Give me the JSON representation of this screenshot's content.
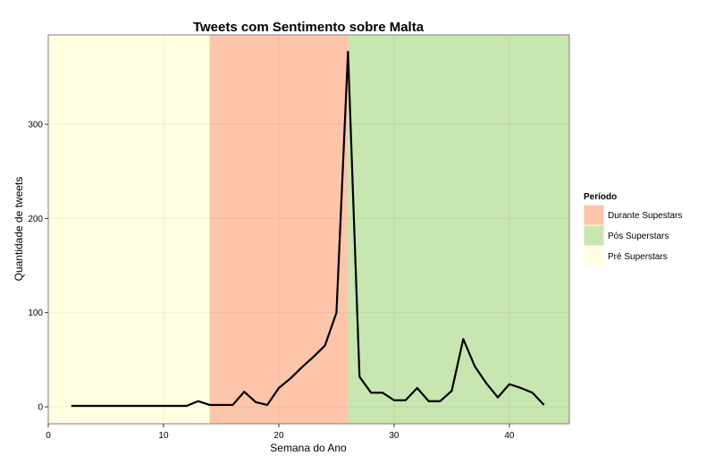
{
  "chart_data": {
    "type": "line",
    "title": "Tweets com Sentimento sobre Malta",
    "xlabel": "Semana do Ano",
    "ylabel": "Quantidade de tweets",
    "xlim": [
      0,
      45.2
    ],
    "ylim": [
      -18,
      395
    ],
    "x_ticks": [
      0,
      10,
      20,
      30,
      40
    ],
    "y_ticks": [
      0,
      100,
      200,
      300
    ],
    "grid": true,
    "legend_position": "right",
    "legend_title": "Período",
    "periods": [
      {
        "name": "Pré Superstars",
        "start": 0,
        "end": 14,
        "color": "#fffee0"
      },
      {
        "name": "Durante Supestars",
        "start": 14,
        "end": 26,
        "color": "#fdc5aa"
      },
      {
        "name": "Pós Superstars",
        "start": 26,
        "end": 45.2,
        "color": "#c8e6b0"
      }
    ],
    "legend": [
      {
        "label": "Durante Supestars",
        "color": "#fdc5aa"
      },
      {
        "label": "Pós Superstars",
        "color": "#c8e6b0"
      },
      {
        "label": "Pré Superstars",
        "color": "#fffee0"
      }
    ],
    "series": [
      {
        "name": "Tweets",
        "color": "#000000",
        "x": [
          2,
          3,
          4,
          5,
          6,
          7,
          8,
          9,
          10,
          11,
          12,
          13,
          14,
          15,
          16,
          17,
          18,
          19,
          20,
          21,
          22,
          23,
          24,
          25,
          26,
          27,
          28,
          29,
          30,
          31,
          32,
          33,
          34,
          35,
          36,
          37,
          38,
          39,
          40,
          41,
          42,
          43
        ],
        "y": [
          1,
          1,
          1,
          1,
          1,
          1,
          1,
          1,
          1,
          1,
          1,
          6,
          2,
          2,
          2,
          16,
          5,
          2,
          20,
          30,
          42,
          53,
          65,
          100,
          377,
          32,
          15,
          15,
          7,
          7,
          20,
          6,
          6,
          17,
          72,
          43,
          25,
          10,
          24,
          20,
          15,
          2
        ]
      }
    ]
  }
}
